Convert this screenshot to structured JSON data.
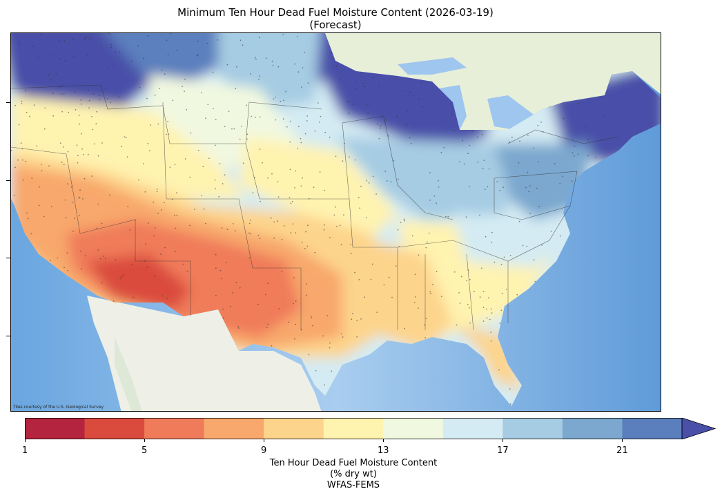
{
  "map": {
    "title_line1": "Minimum Ten Hour Dead Fuel Moisture Content (2026-03-19)",
    "title_line2": "(Forecast)",
    "credit": "Tiles courtesy of the U.S. Geological Survey",
    "colorbar": {
      "min": 1,
      "max": 23,
      "extend": "max",
      "tick_labels": [
        "1",
        "5",
        "9",
        "13",
        "17",
        "21"
      ],
      "colors": [
        "#b5243f",
        "#da4b3e",
        "#f07b5a",
        "#f8a86c",
        "#fdd48c",
        "#fff3b0",
        "#f1f8e0",
        "#d4ebf3",
        "#a6cce3",
        "#7ca8cf",
        "#5b7fbd",
        "#4a4fa8"
      ]
    },
    "footer_line1": "Ten Hour Dead Fuel Moisture Content",
    "footer_line2": "(% dry wt)",
    "footer_line3": "WFAS-FEMS",
    "legend_position": "bottom"
  }
}
